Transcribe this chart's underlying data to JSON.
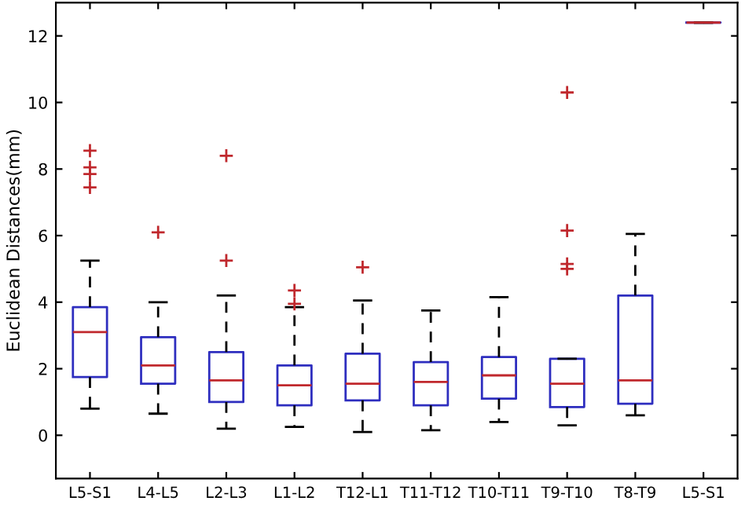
{
  "chart_data": {
    "type": "box",
    "ylabel": "Euclidean Distances(mm)",
    "categories": [
      "L5-S1",
      "L4-L5",
      "L2-L3",
      "L1-L2",
      "T12-L1",
      "T11-T12",
      "T10-T11",
      "T9-T10",
      "T8-T9",
      "L5-S1"
    ],
    "boxes": [
      {
        "low": 0.8,
        "q1": 1.75,
        "median": 3.1,
        "q3": 3.85,
        "high": 5.25,
        "outliers": [
          7.45,
          7.85,
          8.05,
          8.55
        ]
      },
      {
        "low": 0.65,
        "q1": 1.55,
        "median": 2.1,
        "q3": 2.95,
        "high": 4.0,
        "outliers": [
          6.1
        ]
      },
      {
        "low": 0.2,
        "q1": 1.0,
        "median": 1.65,
        "q3": 2.5,
        "high": 4.2,
        "outliers": [
          5.25,
          8.4
        ]
      },
      {
        "low": 0.25,
        "q1": 0.9,
        "median": 1.5,
        "q3": 2.1,
        "high": 3.85,
        "outliers": [
          3.95,
          4.35
        ]
      },
      {
        "low": 0.1,
        "q1": 1.05,
        "median": 1.55,
        "q3": 2.45,
        "high": 4.05,
        "outliers": [
          5.05
        ]
      },
      {
        "low": 0.15,
        "q1": 0.9,
        "median": 1.6,
        "q3": 2.2,
        "high": 3.75
      },
      {
        "low": 0.4,
        "q1": 1.1,
        "median": 1.8,
        "q3": 2.35,
        "high": 4.15
      },
      {
        "low": 0.3,
        "q1": 0.85,
        "median": 1.55,
        "q3": 2.3,
        "high": 2.3,
        "outliers": [
          5.0,
          5.15,
          6.15,
          10.3
        ]
      },
      {
        "low": 0.6,
        "q1": 0.95,
        "median": 1.65,
        "q3": 4.2,
        "high": 6.05
      },
      {
        "low": 12.4,
        "q1": 12.4,
        "median": 12.4,
        "q3": 12.4,
        "high": 12.4
      }
    ],
    "color": "#2e2ebf",
    "marker": "cross",
    "line_style": "dashed",
    "ylim": [
      -1.3,
      13
    ],
    "yticks": [
      0,
      2,
      4,
      6,
      8,
      10,
      12
    ],
    "grid": false
  }
}
